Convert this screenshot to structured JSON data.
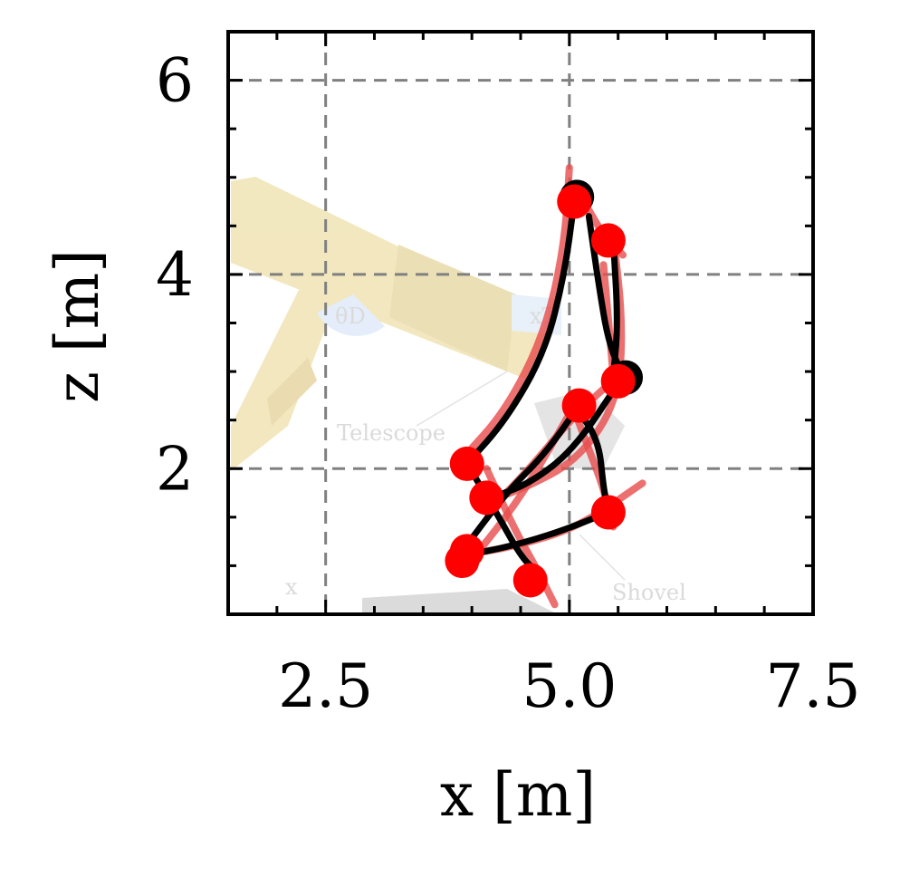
{
  "chart_data": {
    "type": "line",
    "xlabel": "x [m]",
    "ylabel": "z [m]",
    "xlim": [
      1.5,
      7.5
    ],
    "ylim": [
      0.5,
      6.5
    ],
    "xticks": [
      2.5,
      5.0,
      7.5
    ],
    "xtick_labels": [
      "2.5",
      "5.0",
      "7.5"
    ],
    "yticks": [
      2,
      4,
      6
    ],
    "ytick_labels": [
      "2",
      "4",
      "6"
    ],
    "grid": true,
    "background_labels": {
      "telescope": "Telescope",
      "shovel": "Shovel",
      "theta": "θD",
      "xt": "xT",
      "x": "x"
    },
    "series": [
      {
        "role": "demonstration",
        "color": "#e84c4c",
        "curves": [
          [
            [
              5.0,
              5.1
            ],
            [
              4.95,
              4.3
            ],
            [
              4.75,
              3.4
            ],
            [
              4.35,
              2.6
            ],
            [
              3.9,
              2.1
            ]
          ],
          [
            [
              5.45,
              4.4
            ],
            [
              5.55,
              3.5
            ],
            [
              5.5,
              2.7
            ],
            [
              5.1,
              2.1
            ],
            [
              4.55,
              1.8
            ],
            [
              4.1,
              1.65
            ]
          ],
          [
            [
              4.15,
              2.0
            ],
            [
              4.45,
              1.35
            ],
            [
              4.65,
              1.0
            ],
            [
              4.85,
              0.6
            ]
          ],
          [
            [
              3.85,
              1.1
            ],
            [
              4.45,
              1.2
            ],
            [
              5.1,
              1.4
            ],
            [
              5.75,
              1.85
            ]
          ],
          [
            [
              5.05,
              2.6
            ],
            [
              5.2,
              2.2
            ],
            [
              5.35,
              1.8
            ],
            [
              5.45,
              1.4
            ]
          ],
          [
            [
              5.35,
              4.1
            ],
            [
              5.4,
              3.55
            ],
            [
              5.45,
              2.95
            ]
          ],
          [
            [
              5.15,
              4.75
            ],
            [
              5.35,
              4.4
            ],
            [
              5.55,
              4.2
            ]
          ],
          [
            [
              4.15,
              1.55
            ],
            [
              4.55,
              1.95
            ],
            [
              5.05,
              2.55
            ],
            [
              5.55,
              3.0
            ]
          ],
          [
            [
              5.05,
              2.65
            ],
            [
              4.65,
              1.95
            ],
            [
              4.35,
              1.5
            ],
            [
              3.95,
              1.0
            ]
          ]
        ]
      },
      {
        "role": "reproduction",
        "color": "#000000",
        "curves": [
          [
            [
              5.05,
              4.75
            ],
            [
              4.95,
              4.0
            ],
            [
              4.75,
              3.2
            ],
            [
              4.35,
              2.5
            ],
            [
              3.95,
              2.05
            ]
          ],
          [
            [
              5.2,
              4.6
            ],
            [
              5.3,
              3.9
            ],
            [
              5.4,
              3.3
            ],
            [
              5.55,
              2.95
            ]
          ],
          [
            [
              5.45,
              4.35
            ],
            [
              5.5,
              3.5
            ],
            [
              5.45,
              2.95
            ]
          ],
          [
            [
              5.55,
              2.95
            ],
            [
              5.05,
              2.2
            ],
            [
              4.6,
              1.85
            ],
            [
              4.2,
              1.7
            ]
          ],
          [
            [
              5.1,
              2.65
            ],
            [
              4.75,
              2.15
            ],
            [
              4.35,
              1.75
            ],
            [
              3.9,
              1.15
            ]
          ],
          [
            [
              3.95,
              2.05
            ],
            [
              4.25,
              1.55
            ],
            [
              4.5,
              1.1
            ],
            [
              4.65,
              0.95
            ]
          ],
          [
            [
              3.9,
              1.1
            ],
            [
              4.4,
              1.2
            ],
            [
              4.9,
              1.35
            ],
            [
              5.4,
              1.55
            ]
          ],
          [
            [
              5.05,
              2.65
            ],
            [
              5.3,
              2.3
            ],
            [
              5.35,
              1.8
            ],
            [
              5.4,
              1.55
            ]
          ]
        ]
      }
    ],
    "markers": {
      "color": "#ff0000",
      "points": [
        [
          5.05,
          4.75
        ],
        [
          5.4,
          4.35
        ],
        [
          5.5,
          2.9
        ],
        [
          5.1,
          2.65
        ],
        [
          3.95,
          2.05
        ],
        [
          4.15,
          1.7
        ],
        [
          5.4,
          1.55
        ],
        [
          3.95,
          1.15
        ],
        [
          3.9,
          1.05
        ],
        [
          4.6,
          0.85
        ]
      ]
    },
    "marker_shadows": {
      "color": "#000000",
      "points": [
        [
          5.05,
          4.78
        ],
        [
          5.55,
          2.92
        ]
      ]
    }
  }
}
